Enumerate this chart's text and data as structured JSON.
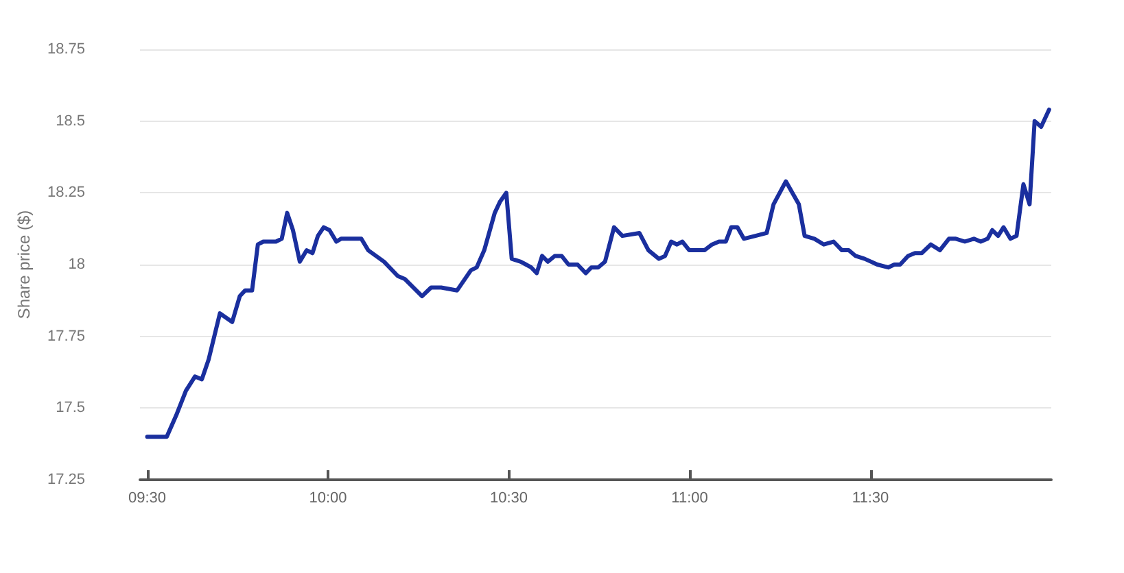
{
  "chart_data": {
    "type": "line",
    "ylabel": "Share price ($)",
    "x": [
      9.5,
      9.554,
      9.582,
      9.607,
      9.632,
      9.651,
      9.67,
      9.701,
      9.735,
      9.756,
      9.771,
      9.79,
      9.806,
      9.821,
      9.856,
      9.872,
      9.887,
      9.903,
      9.922,
      9.941,
      9.957,
      9.972,
      9.988,
      10.004,
      10.023,
      10.036,
      10.092,
      10.111,
      10.155,
      10.193,
      10.212,
      10.26,
      10.285,
      10.313,
      10.357,
      10.395,
      10.411,
      10.432,
      10.461,
      10.476,
      10.493,
      10.508,
      10.533,
      10.562,
      10.577,
      10.592,
      10.608,
      10.627,
      10.646,
      10.665,
      10.69,
      10.713,
      10.728,
      10.747,
      10.766,
      10.791,
      10.814,
      10.861,
      10.886,
      10.915,
      10.932,
      10.949,
      10.965,
      10.98,
      10.999,
      11.041,
      11.062,
      11.081,
      11.1,
      11.115,
      11.132,
      11.15,
      11.182,
      11.213,
      11.232,
      11.266,
      11.302,
      11.318,
      11.345,
      11.371,
      11.398,
      11.421,
      11.44,
      11.459,
      11.484,
      11.519,
      11.549,
      11.566,
      11.582,
      11.604,
      11.623,
      11.642,
      11.667,
      11.692,
      11.717,
      11.736,
      11.761,
      11.786,
      11.805,
      11.824,
      11.837,
      11.853,
      11.868,
      11.887,
      11.904,
      11.923,
      11.94,
      11.954,
      11.972,
      11.994
    ],
    "series": [
      {
        "color": "#1a2f9e",
        "values": [
          17.4,
          17.4,
          17.48,
          17.56,
          17.61,
          17.6,
          17.67,
          17.83,
          17.8,
          17.89,
          17.91,
          17.91,
          18.07,
          18.08,
          18.08,
          18.09,
          18.18,
          18.12,
          18.01,
          18.05,
          18.04,
          18.1,
          18.13,
          18.12,
          18.08,
          18.09,
          18.09,
          18.05,
          18.01,
          17.96,
          17.95,
          17.89,
          17.92,
          17.92,
          17.91,
          17.98,
          17.99,
          18.05,
          18.18,
          18.22,
          18.25,
          18.02,
          18.01,
          17.99,
          17.97,
          18.03,
          18.01,
          18.03,
          18.03,
          18.0,
          18.0,
          17.97,
          17.99,
          17.99,
          18.01,
          18.13,
          18.1,
          18.11,
          18.05,
          18.02,
          18.03,
          18.08,
          18.07,
          18.08,
          18.05,
          18.05,
          18.07,
          18.08,
          18.08,
          18.13,
          18.13,
          18.09,
          18.1,
          18.11,
          18.21,
          18.29,
          18.21,
          18.1,
          18.09,
          18.07,
          18.08,
          18.05,
          18.05,
          18.03,
          18.02,
          18.0,
          17.99,
          18.0,
          18.0,
          18.03,
          18.04,
          18.04,
          18.07,
          18.05,
          18.09,
          18.09,
          18.08,
          18.09,
          18.08,
          18.09,
          18.12,
          18.1,
          18.13,
          18.09,
          18.1,
          18.28,
          18.21,
          18.5,
          18.48,
          18.54
        ]
      }
    ],
    "xlim": [
      9.48,
      12.0
    ],
    "xticks": [
      {
        "value": 9.5,
        "label": "09:30"
      },
      {
        "value": 10,
        "label": "10:00"
      },
      {
        "value": 10.5,
        "label": "10:30"
      },
      {
        "value": 11,
        "label": "11:00"
      },
      {
        "value": 11.5,
        "label": "11:30"
      }
    ],
    "ylim": [
      17.25,
      18.75
    ],
    "yticks": [
      17.25,
      17.5,
      17.75,
      18,
      18.25,
      18.5,
      18.75
    ],
    "grid": "y",
    "marker": "none",
    "line_style": "solid"
  }
}
